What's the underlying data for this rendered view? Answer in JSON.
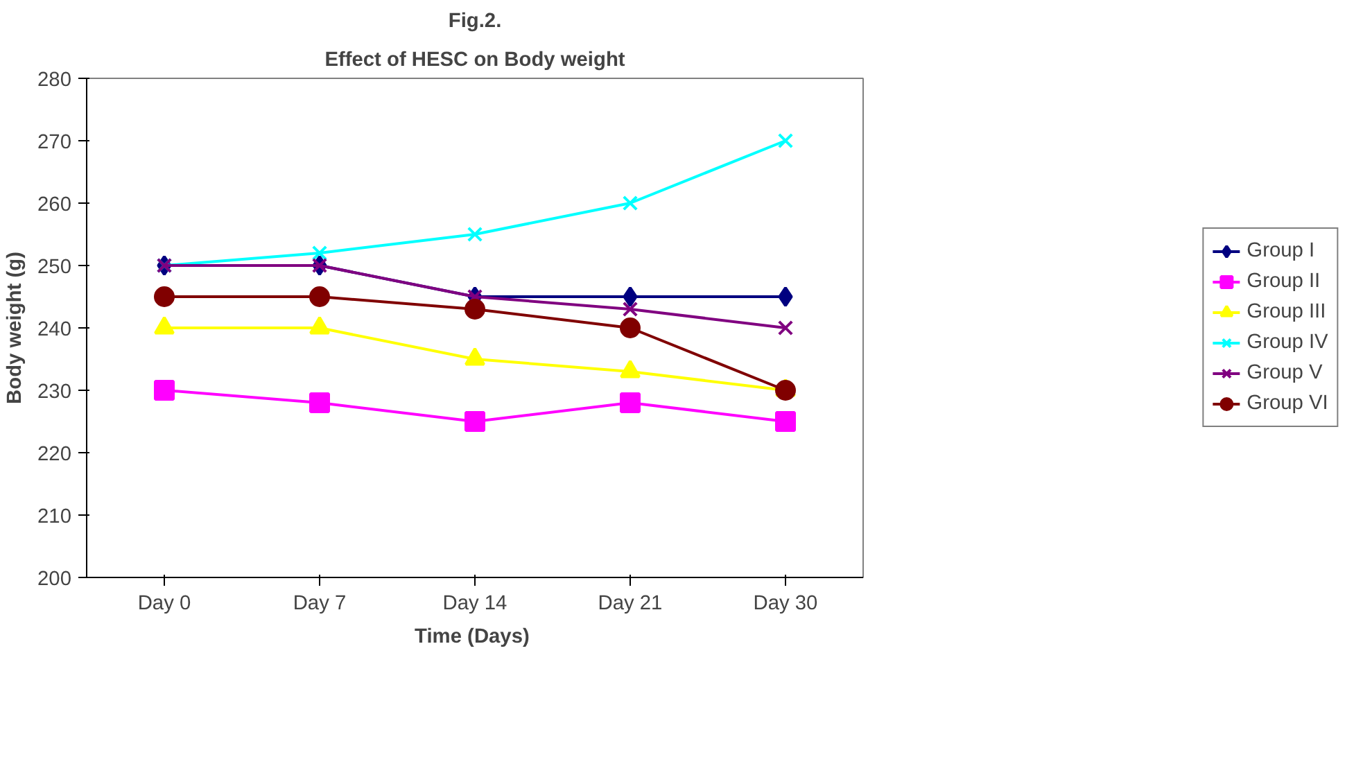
{
  "chart_data": {
    "type": "line",
    "title": "Fig.2.",
    "subtitle": "Effect of HESC on Body weight",
    "xlabel": "Time  (Days)",
    "ylabel": "Body weight (g)",
    "categories": [
      "Day 0",
      "Day 7",
      "Day 14",
      "Day 21",
      "Day 30"
    ],
    "ylim": [
      200,
      280
    ],
    "yticks": [
      200,
      210,
      220,
      230,
      240,
      250,
      260,
      270,
      280
    ],
    "legend": "right",
    "line_style": "solid",
    "series": [
      {
        "name": "Group I",
        "color": "#000080",
        "marker": "diamond",
        "values": [
          250,
          250,
          245,
          245,
          245
        ]
      },
      {
        "name": "Group II",
        "color": "#ff00ff",
        "marker": "square",
        "values": [
          230,
          228,
          225,
          228,
          225
        ]
      },
      {
        "name": "Group III",
        "color": "#ffff00",
        "marker": "triangle",
        "values": [
          240,
          240,
          235,
          233,
          230
        ]
      },
      {
        "name": "Group IV",
        "color": "#00ffff",
        "marker": "cross",
        "values": [
          250,
          252,
          255,
          260,
          270
        ]
      },
      {
        "name": "Group V",
        "color": "#800080",
        "marker": "cross",
        "values": [
          250,
          250,
          245,
          243,
          240
        ]
      },
      {
        "name": "Group VI",
        "color": "#800000",
        "marker": "circle",
        "values": [
          245,
          245,
          243,
          240,
          230
        ]
      }
    ]
  }
}
